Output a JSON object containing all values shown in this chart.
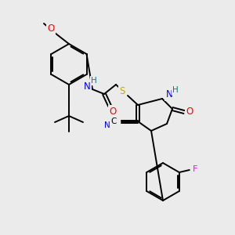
{
  "bg_color": "#ebebeb",
  "atom_colors": {
    "C": "#000000",
    "N": "#0000ff",
    "O": "#ff0000",
    "S": "#ccaa00",
    "F": "#ff00ff",
    "H": "#008080"
  },
  "figsize": [
    3.0,
    3.0
  ],
  "dpi": 100
}
